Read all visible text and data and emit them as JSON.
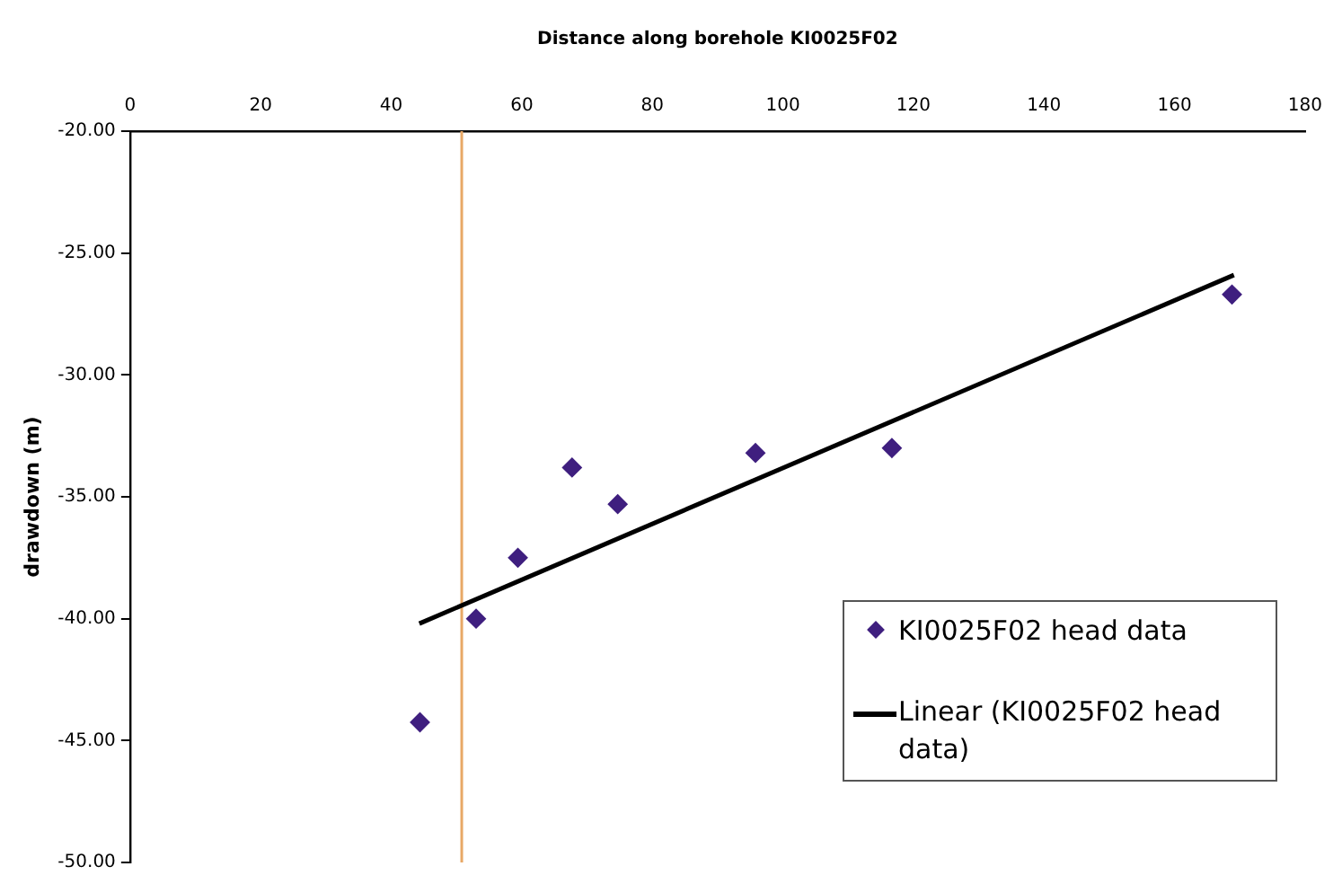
{
  "chart_data": {
    "type": "scatter",
    "xlabel": "Distance along borehole KI0025F02",
    "ylabel": "drawdown (m)",
    "series": [
      {
        "name": "KI0025F02 head data",
        "color": "#3f1f7f",
        "marker": "diamond",
        "x": [
          44.4,
          53.0,
          59.4,
          67.7,
          74.7,
          95.8,
          116.7,
          168.8
        ],
        "values": [
          -44.25,
          -40.0,
          -37.5,
          -33.8,
          -35.3,
          -33.2,
          -33.0,
          -26.7
        ]
      },
      {
        "name": "Linear (KI0025F02 head data)",
        "type": "line",
        "color": "#000000",
        "marker": "none",
        "line_style": "solid",
        "x": [
          44.3,
          169.1
        ],
        "values": [
          -40.2,
          -25.9
        ]
      }
    ],
    "xlim": [
      0,
      180
    ],
    "xticks": [
      0,
      20,
      40,
      60,
      80,
      100,
      120,
      140,
      160,
      180
    ],
    "ylim": [
      -50,
      -20
    ],
    "yticks": [
      {
        "value": -50,
        "label": "-50.00"
      },
      {
        "value": -45,
        "label": "-45.00"
      },
      {
        "value": -40,
        "label": "-40.00"
      },
      {
        "value": -35,
        "label": "-35.00"
      },
      {
        "value": -30,
        "label": "-30.00"
      },
      {
        "value": -25,
        "label": "-25.00"
      },
      {
        "value": -20,
        "label": "-20.00"
      }
    ],
    "ref_lines": [
      {
        "axis": "x",
        "value": 50.8,
        "color": "#e8a866"
      }
    ],
    "grid": false,
    "legend": "bottom right"
  }
}
